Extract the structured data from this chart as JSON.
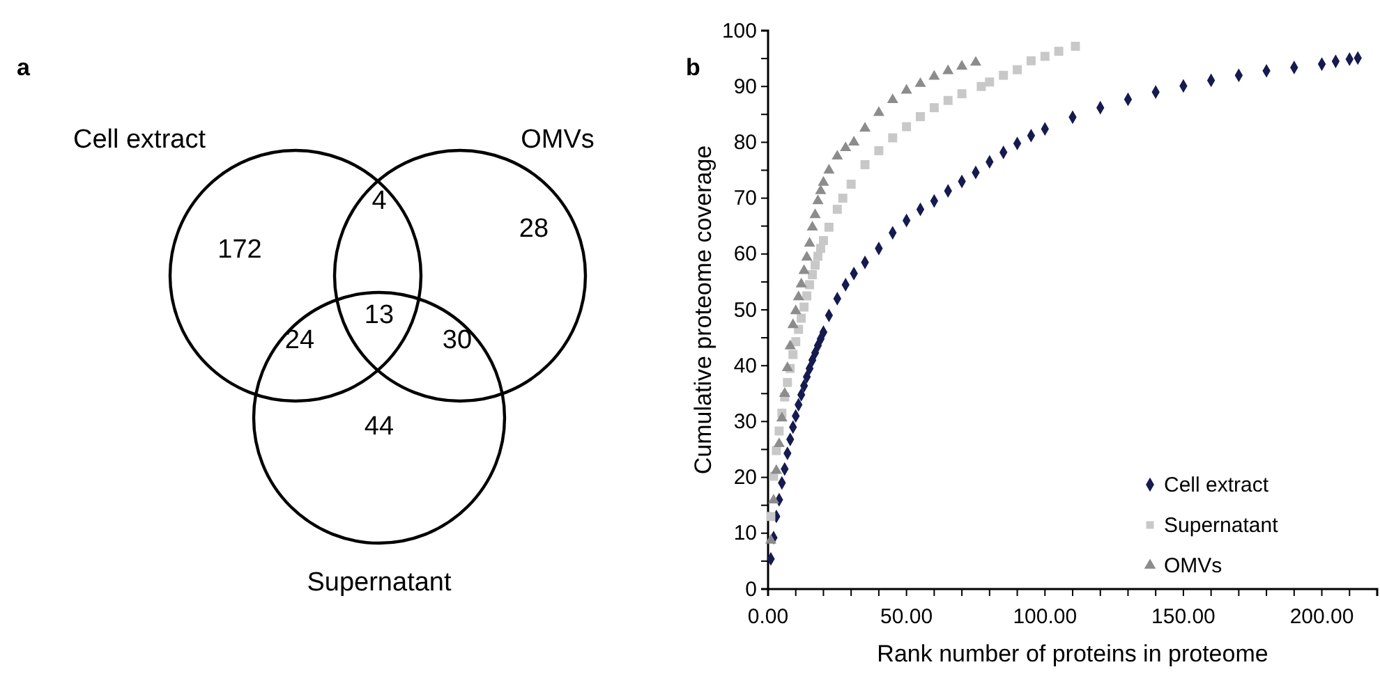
{
  "chart_data": [
    {
      "type": "other",
      "title": "a",
      "annotations": [
        "Cell extract",
        "OMVs",
        "Supernatant",
        "172",
        "4",
        "28",
        "24",
        "13",
        "30",
        "44"
      ]
    },
    {
      "type": "scatter",
      "title": "b",
      "xlabel": "Rank number of proteins in proteome",
      "ylabel": "Cumulative proteome coverage",
      "xlim": [
        0,
        220
      ],
      "ylim": [
        0,
        100
      ],
      "xticks": [
        {
          "value": 0,
          "label": "0.00"
        },
        {
          "value": 10,
          "label": null
        },
        {
          "value": 20,
          "label": null
        },
        {
          "value": 30,
          "label": null
        },
        {
          "value": 40,
          "label": null
        },
        {
          "value": 50,
          "label": "50.00"
        },
        {
          "value": 60,
          "label": null
        },
        {
          "value": 70,
          "label": null
        },
        {
          "value": 80,
          "label": null
        },
        {
          "value": 90,
          "label": null
        },
        {
          "value": 100,
          "label": "100.00"
        },
        {
          "value": 110,
          "label": null
        },
        {
          "value": 120,
          "label": null
        },
        {
          "value": 130,
          "label": null
        },
        {
          "value": 140,
          "label": null
        },
        {
          "value": 150,
          "label": "150.00"
        },
        {
          "value": 160,
          "label": null
        },
        {
          "value": 170,
          "label": null
        },
        {
          "value": 180,
          "label": null
        },
        {
          "value": 190,
          "label": null
        },
        {
          "value": 200,
          "label": "200.00"
        },
        {
          "value": 210,
          "label": null
        }
      ],
      "yticks": [
        0,
        {
          "value": 5,
          "label": null
        },
        10,
        {
          "value": 15,
          "label": null
        },
        20,
        {
          "value": 25,
          "label": null
        },
        30,
        {
          "value": 35,
          "label": null
        },
        40,
        {
          "value": 45,
          "label": null
        },
        50,
        {
          "value": 55,
          "label": null
        },
        60,
        {
          "value": 65,
          "label": null
        },
        70,
        {
          "value": 75,
          "label": null
        },
        80,
        {
          "value": 85,
          "label": null
        },
        90,
        {
          "value": 95,
          "label": null
        },
        100
      ],
      "grid": false,
      "legend": "right",
      "series": [
        {
          "name": "Cell extract",
          "color": "#151a4f",
          "marker": "diamond",
          "x": [
            1,
            2,
            3,
            4,
            5,
            6,
            7,
            8,
            9,
            10,
            11,
            12,
            13,
            14,
            15,
            16,
            17,
            18,
            19,
            20,
            22,
            25,
            28,
            31,
            35,
            40,
            45,
            50,
            55,
            60,
            65,
            70,
            75,
            80,
            85,
            90,
            95,
            100,
            110,
            120,
            130,
            140,
            150,
            160,
            170,
            180,
            190,
            200,
            205,
            210,
            213
          ],
          "values": [
            5.4,
            9.2,
            13,
            16,
            19,
            21.5,
            24.3,
            26.8,
            29,
            31,
            33,
            34.8,
            36.4,
            38,
            39.5,
            41,
            42.3,
            43.6,
            44.8,
            46,
            49,
            52,
            54.5,
            56.5,
            58.5,
            61,
            63.8,
            66,
            68,
            69.5,
            71.3,
            73,
            74.6,
            76.5,
            78.2,
            79.8,
            81.2,
            82.4,
            84.5,
            86.2,
            87.7,
            89,
            90.1,
            91.1,
            92,
            92.8,
            93.4,
            94,
            94.5,
            94.9,
            95.1
          ]
        },
        {
          "name": "Supernatant",
          "color": "#c8c8c8",
          "marker": "square",
          "x": [
            1,
            2,
            3,
            4,
            5,
            6,
            7,
            8,
            9,
            10,
            11,
            12,
            13,
            14,
            15,
            16,
            17,
            18,
            19,
            20,
            22,
            25,
            27,
            30,
            35,
            40,
            45,
            50,
            55,
            60,
            65,
            70,
            77,
            80,
            85,
            90,
            95,
            100,
            105,
            111
          ],
          "values": [
            13,
            20.2,
            24.8,
            28.3,
            31.5,
            34.4,
            37,
            39.5,
            42,
            44.3,
            46.5,
            48.5,
            50.5,
            52.5,
            54.5,
            56.3,
            58,
            59.6,
            61,
            62.4,
            64.8,
            68,
            70,
            72.5,
            76,
            78.5,
            80.8,
            82.8,
            84.6,
            86.2,
            87.5,
            88.7,
            90,
            90.8,
            92,
            93,
            94.6,
            95.4,
            96.3,
            97.2
          ]
        },
        {
          "name": "OMVs",
          "color": "#8c8c8c",
          "marker": "triangle",
          "x": [
            1,
            2,
            3,
            4,
            5,
            6,
            7,
            8,
            9,
            10,
            11,
            12,
            13,
            14,
            15,
            16,
            17,
            18,
            19,
            20,
            22,
            25,
            28,
            31,
            35,
            40,
            45,
            50,
            55,
            60,
            65,
            70,
            75
          ],
          "values": [
            8.7,
            15.9,
            21.2,
            26,
            30.6,
            35,
            39.6,
            43.5,
            47.3,
            49.8,
            52.3,
            54.6,
            57,
            59.4,
            61.9,
            64.8,
            67,
            69.5,
            71.3,
            72.8,
            75,
            77.5,
            79,
            80,
            82.5,
            85.3,
            87.6,
            89.3,
            90.5,
            91.8,
            92.8,
            93.6,
            94.3
          ]
        }
      ]
    }
  ]
}
